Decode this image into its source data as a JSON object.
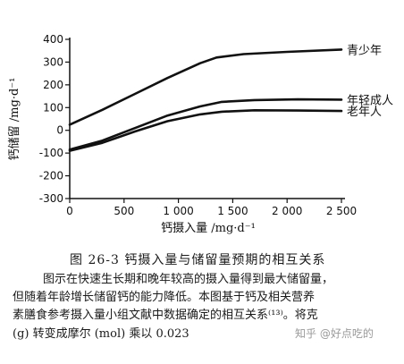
{
  "chart_data": {
    "type": "line",
    "ylabel": "钙储留 /mg·d⁻¹",
    "xlabel": "钙摄入量 /mg·d⁻¹",
    "xlim": [
      0,
      2500
    ],
    "ylim": [
      -300,
      400
    ],
    "xticks": [
      "0",
      "500",
      "1 000",
      "1 500",
      "2 000",
      "2 500"
    ],
    "yticks": [
      "400",
      "300",
      "200",
      "100",
      "0",
      "-100",
      "-200",
      "-300"
    ],
    "xtick_values": [
      0,
      500,
      1000,
      1500,
      2000,
      2500
    ],
    "ytick_values": [
      400,
      300,
      200,
      100,
      0,
      -100,
      -200,
      -300
    ],
    "grid": false,
    "series": [
      {
        "name": "青少年",
        "points": [
          [
            0,
            25
          ],
          [
            300,
            90
          ],
          [
            600,
            160
          ],
          [
            900,
            230
          ],
          [
            1200,
            295
          ],
          [
            1350,
            320
          ],
          [
            1600,
            335
          ],
          [
            2000,
            345
          ],
          [
            2500,
            355
          ]
        ]
      },
      {
        "name": "年轻成人",
        "points": [
          [
            0,
            -85
          ],
          [
            300,
            -45
          ],
          [
            600,
            10
          ],
          [
            900,
            65
          ],
          [
            1200,
            105
          ],
          [
            1400,
            125
          ],
          [
            1700,
            133
          ],
          [
            2100,
            136
          ],
          [
            2500,
            135
          ]
        ]
      },
      {
        "name": "老年人",
        "points": [
          [
            0,
            -90
          ],
          [
            300,
            -55
          ],
          [
            600,
            -5
          ],
          [
            900,
            40
          ],
          [
            1200,
            70
          ],
          [
            1400,
            82
          ],
          [
            1700,
            88
          ],
          [
            2100,
            87
          ],
          [
            2500,
            85
          ]
        ]
      }
    ]
  },
  "caption": {
    "title": "图 26-3   钙摄入量与储留量预期的相互关系",
    "line1": "图示在快速生长期和晚年较高的摄入量得到最大储留量，",
    "line2": "但随着年龄增长储留钙的能力降低。本图基于钙及相关营养",
    "line3": "素膳食参考摄入量小组文献中数据确定的相互关系⁽¹³⁾。将克",
    "line4": "(g) 转变成摩尔 (mol) 乘以 0.023"
  },
  "watermark": "知乎 @好点吃的"
}
